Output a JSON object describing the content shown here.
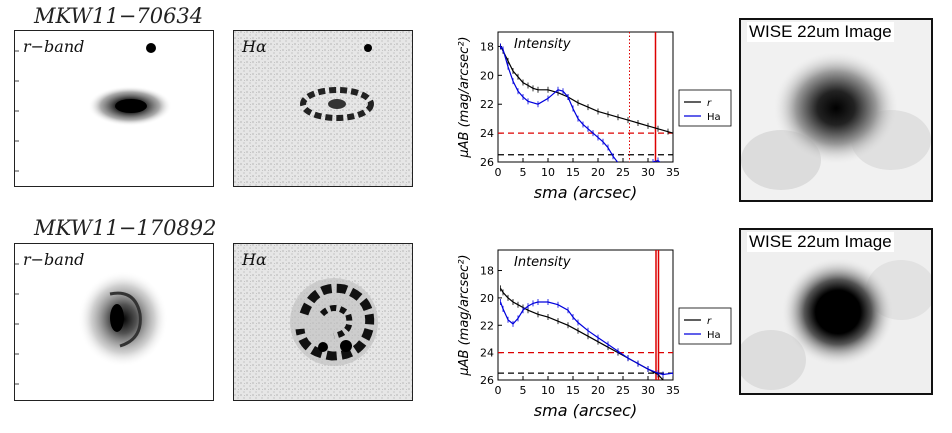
{
  "rows": [
    {
      "galaxy_id": "MKW11−70634",
      "rband_label": "r−band",
      "halpha_label": "Hα",
      "wise_label": "WISE 22um Image",
      "chart_data": {
        "type": "line",
        "title": "Intensity",
        "xlabel": "sma (arcsec)",
        "ylabel": "μAB (mag/arcsec²)",
        "xlim": [
          0,
          35
        ],
        "ylim": [
          26,
          17
        ],
        "xticks": [
          0,
          5,
          10,
          15,
          20,
          25,
          30,
          35
        ],
        "yticks": [
          18,
          20,
          22,
          24,
          26
        ],
        "series": [
          {
            "name": "r",
            "color": "#000000",
            "x": [
              0.5,
              1,
              2,
              3,
              4,
              5,
              6,
              7,
              8,
              10,
              12,
              14,
              16,
              18,
              20,
              22,
              24,
              26,
              28,
              30,
              32,
              34,
              35
            ],
            "y": [
              18.0,
              18.3,
              19.0,
              19.7,
              20.1,
              20.5,
              20.7,
              20.9,
              21.0,
              21.0,
              21.2,
              21.5,
              21.9,
              22.2,
              22.5,
              22.7,
              22.9,
              23.1,
              23.3,
              23.5,
              23.7,
              23.9,
              24.0
            ]
          },
          {
            "name": "Ha",
            "color": "#0000dd",
            "x": [
              0.5,
              1,
              2,
              3,
              4,
              5,
              6,
              8,
              10,
              12,
              13,
              14,
              15,
              16,
              17,
              18,
              19,
              20,
              21,
              22,
              23,
              25,
              27,
              31,
              32,
              33
            ],
            "y": [
              18.0,
              18.2,
              19.4,
              20.4,
              21.1,
              21.5,
              21.8,
              22.0,
              21.6,
              21.0,
              21.1,
              21.5,
              22.3,
              23.0,
              23.4,
              23.7,
              24.0,
              24.3,
              24.6,
              25.0,
              25.6,
              26.5,
              27.0,
              26.0,
              25.9,
              26.2
            ]
          }
        ],
        "hlines": [
          {
            "y": 24.0,
            "color": "#dd0000",
            "style": "dashed"
          },
          {
            "y": 25.5,
            "color": "#000000",
            "style": "dashed"
          }
        ],
        "vlines": [
          {
            "x": 26.3,
            "color": "#dd0000",
            "style": "dotted"
          },
          {
            "x": 31.5,
            "color": "#dd0000",
            "style": "solid"
          }
        ]
      }
    },
    {
      "galaxy_id": "MKW11−170892",
      "rband_label": "r−band",
      "halpha_label": "Hα",
      "wise_label": "WISE 22um Image",
      "chart_data": {
        "type": "line",
        "title": "Intensity",
        "xlabel": "sma (arcsec)",
        "ylabel": "μAB (mag/arcsec²)",
        "xlim": [
          0,
          35
        ],
        "ylim": [
          26,
          16.5
        ],
        "xticks": [
          0,
          5,
          10,
          15,
          20,
          25,
          30,
          35
        ],
        "yticks": [
          18,
          20,
          22,
          24,
          26
        ],
        "series": [
          {
            "name": "r",
            "color": "#000000",
            "x": [
              0.5,
              1,
              2,
              3,
              4,
              5,
              6,
              8,
              10,
              12,
              14,
              16,
              18,
              20,
              22,
              24,
              26,
              28,
              30,
              32,
              33
            ],
            "y": [
              19.3,
              19.6,
              20.0,
              20.3,
              20.5,
              20.7,
              20.9,
              21.2,
              21.4,
              21.7,
              22.0,
              22.4,
              22.8,
              23.2,
              23.6,
              24.0,
              24.4,
              24.8,
              25.2,
              25.6,
              26.0
            ]
          },
          {
            "name": "Ha",
            "color": "#0000dd",
            "x": [
              0.5,
              1,
              2,
              3,
              4,
              5,
              6,
              7,
              8,
              10,
              12,
              14,
              15,
              16,
              18,
              20,
              22,
              24,
              26,
              28,
              30,
              32,
              33,
              35
            ],
            "y": [
              20.3,
              20.8,
              21.6,
              21.9,
              21.5,
              20.9,
              20.6,
              20.4,
              20.3,
              20.3,
              20.5,
              20.9,
              21.4,
              21.8,
              22.4,
              22.9,
              23.4,
              23.9,
              24.4,
              24.8,
              25.2,
              25.5,
              25.6,
              25.5
            ]
          }
        ],
        "hlines": [
          {
            "y": 24.0,
            "color": "#dd0000",
            "style": "dashed"
          },
          {
            "y": 25.5,
            "color": "#000000",
            "style": "dashed"
          }
        ],
        "vlines": [
          {
            "x": 31.6,
            "color": "#dd0000",
            "style": "solid"
          },
          {
            "x": 32.1,
            "color": "#dd0000",
            "style": "solid"
          }
        ]
      }
    }
  ]
}
